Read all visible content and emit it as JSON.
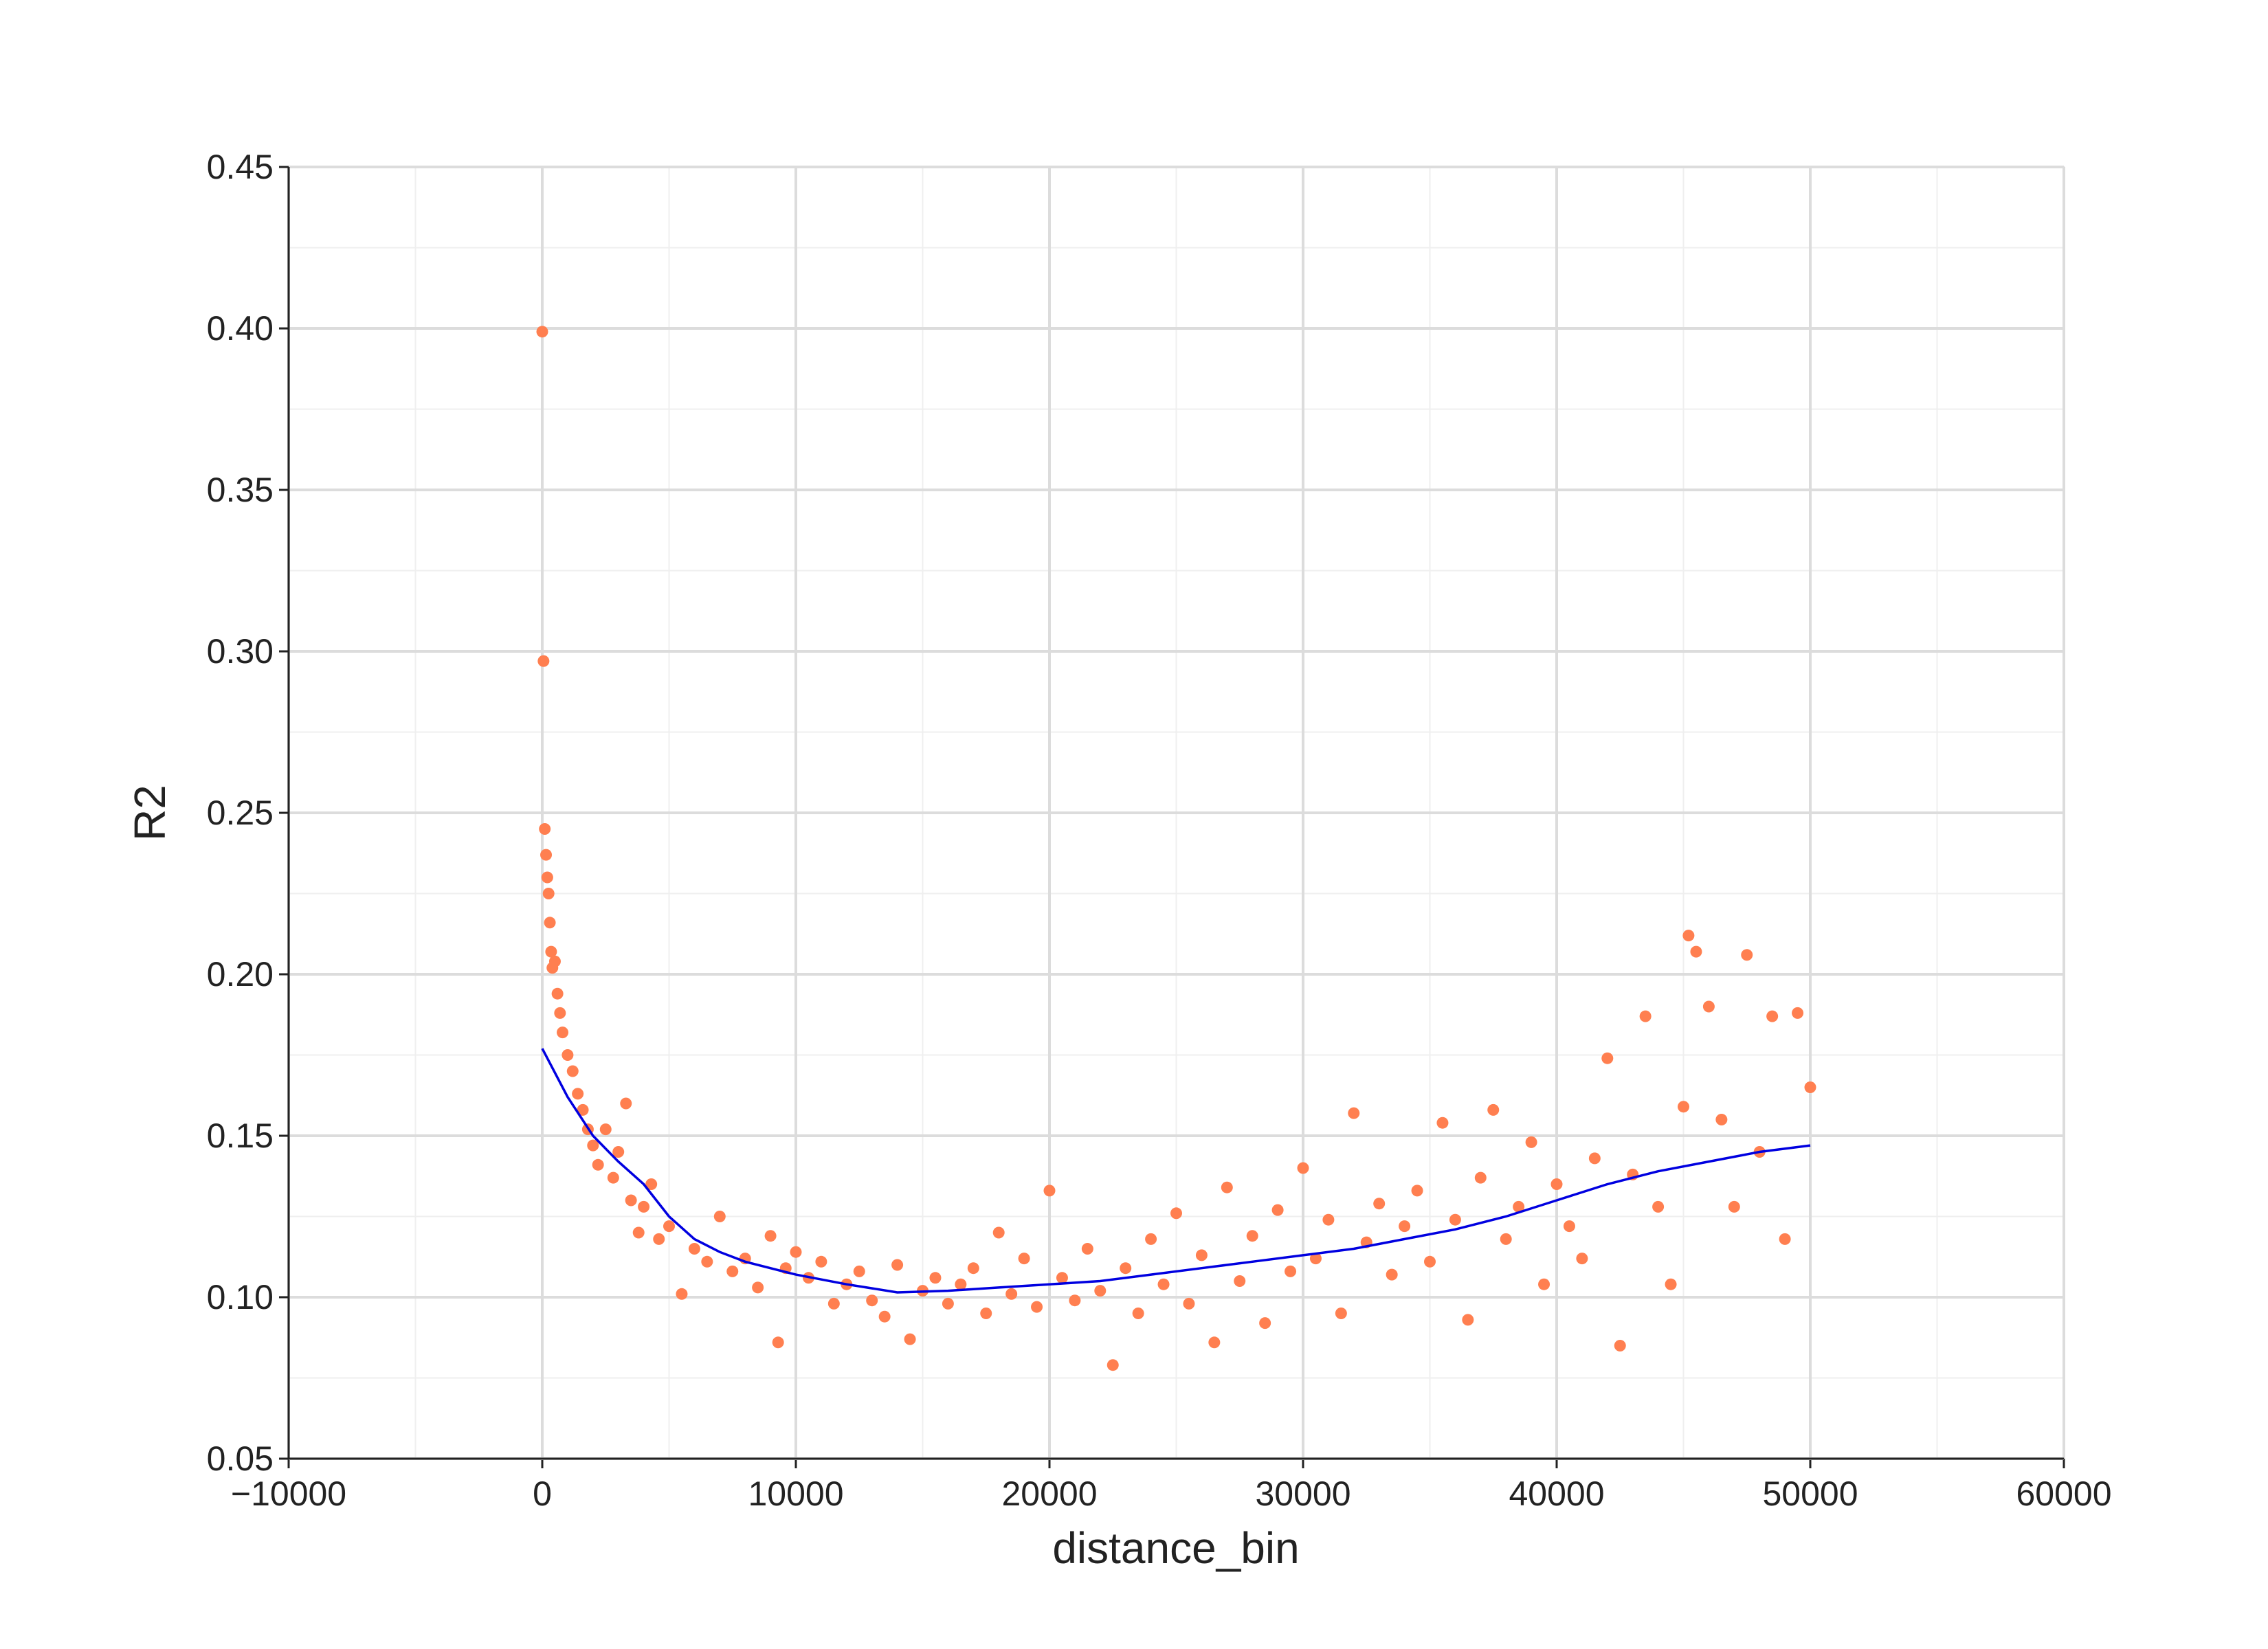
{
  "chart_data": {
    "type": "scatter",
    "xlabel": "distance_bin",
    "ylabel": "R2",
    "xlim": [
      -10000,
      60000
    ],
    "xticks": [
      {
        "value": -10000,
        "label": "−10000"
      },
      0,
      10000,
      20000,
      30000,
      40000,
      50000,
      60000
    ],
    "ylim": [
      0.05,
      0.45
    ],
    "yticks": [
      0.05,
      {
        "value": 0.1,
        "label": "0.10"
      },
      0.15,
      {
        "value": 0.2,
        "label": "0.20"
      },
      0.25,
      {
        "value": 0.3,
        "label": "0.30"
      },
      0.35,
      {
        "value": 0.4,
        "label": "0.40"
      },
      0.45
    ],
    "grid": true,
    "series": [
      {
        "type": "scatter",
        "color": "#ff7f50",
        "x": [
          0,
          50,
          100,
          150,
          200,
          250,
          300,
          350,
          400,
          500,
          600,
          700,
          800,
          1000,
          1200,
          1400,
          1600,
          1800,
          2000,
          2200,
          2500,
          2800,
          3000,
          3300,
          3500,
          3800,
          4000,
          4300,
          4600,
          5000,
          5500,
          6000,
          6500,
          7000,
          7500,
          8000,
          8500,
          9000,
          9300,
          9600,
          10000,
          10500,
          11000,
          11500,
          12000,
          12500,
          13000,
          13500,
          14000,
          14500,
          15000,
          15500,
          16000,
          16500,
          17000,
          17500,
          18000,
          18500,
          19000,
          19500,
          20000,
          20500,
          21000,
          21500,
          22000,
          22500,
          23000,
          23500,
          24000,
          24500,
          25000,
          25500,
          26000,
          26500,
          27000,
          27500,
          28000,
          28500,
          29000,
          29500,
          30000,
          30500,
          31000,
          31500,
          32000,
          32500,
          33000,
          33500,
          34000,
          34500,
          35000,
          35500,
          36000,
          36500,
          37000,
          37500,
          38000,
          38500,
          39000,
          39500,
          40000,
          40500,
          41000,
          41500,
          42000,
          42500,
          43000,
          43500,
          44000,
          44500,
          45000,
          45200,
          45500,
          46000,
          46500,
          47000,
          47500,
          48000,
          48500,
          49000,
          49500,
          50000
        ],
        "values": [
          0.399,
          0.297,
          0.245,
          0.237,
          0.23,
          0.225,
          0.216,
          0.207,
          0.202,
          0.204,
          0.194,
          0.188,
          0.182,
          0.175,
          0.17,
          0.163,
          0.158,
          0.152,
          0.147,
          0.141,
          0.152,
          0.137,
          0.145,
          0.16,
          0.13,
          0.12,
          0.128,
          0.135,
          0.118,
          0.122,
          0.101,
          0.115,
          0.111,
          0.125,
          0.108,
          0.112,
          0.103,
          0.119,
          0.086,
          0.109,
          0.114,
          0.106,
          0.111,
          0.098,
          0.104,
          0.108,
          0.099,
          0.094,
          0.11,
          0.087,
          0.102,
          0.106,
          0.098,
          0.104,
          0.109,
          0.095,
          0.12,
          0.101,
          0.112,
          0.097,
          0.133,
          0.106,
          0.099,
          0.115,
          0.102,
          0.079,
          0.109,
          0.095,
          0.118,
          0.104,
          0.126,
          0.098,
          0.113,
          0.086,
          0.134,
          0.105,
          0.119,
          0.092,
          0.127,
          0.108,
          0.14,
          0.112,
          0.124,
          0.095,
          0.157,
          0.117,
          0.129,
          0.107,
          0.122,
          0.133,
          0.111,
          0.154,
          0.124,
          0.093,
          0.137,
          0.158,
          0.118,
          0.128,
          0.148,
          0.104,
          0.135,
          0.122,
          0.112,
          0.143,
          0.174,
          0.085,
          0.138,
          0.187,
          0.128,
          0.104,
          0.159,
          0.212,
          0.207,
          0.19,
          0.155,
          0.128,
          0.206,
          0.145,
          0.187,
          0.118,
          0.188,
          0.165
        ]
      },
      {
        "type": "line",
        "color": "#0000e0",
        "x": [
          0,
          1000,
          2000,
          3000,
          4000,
          5000,
          6000,
          7000,
          8000,
          10000,
          12000,
          14000,
          16000,
          18000,
          20000,
          22000,
          24000,
          26000,
          28000,
          30000,
          32000,
          34000,
          36000,
          38000,
          40000,
          42000,
          44000,
          46000,
          48000,
          50000
        ],
        "values": [
          0.177,
          0.162,
          0.15,
          0.142,
          0.135,
          0.125,
          0.118,
          0.114,
          0.111,
          0.107,
          0.104,
          0.1015,
          0.102,
          0.103,
          0.104,
          0.105,
          0.107,
          0.109,
          0.111,
          0.113,
          0.115,
          0.118,
          0.121,
          0.125,
          0.13,
          0.135,
          0.139,
          0.142,
          0.145,
          0.147
        ]
      }
    ]
  }
}
